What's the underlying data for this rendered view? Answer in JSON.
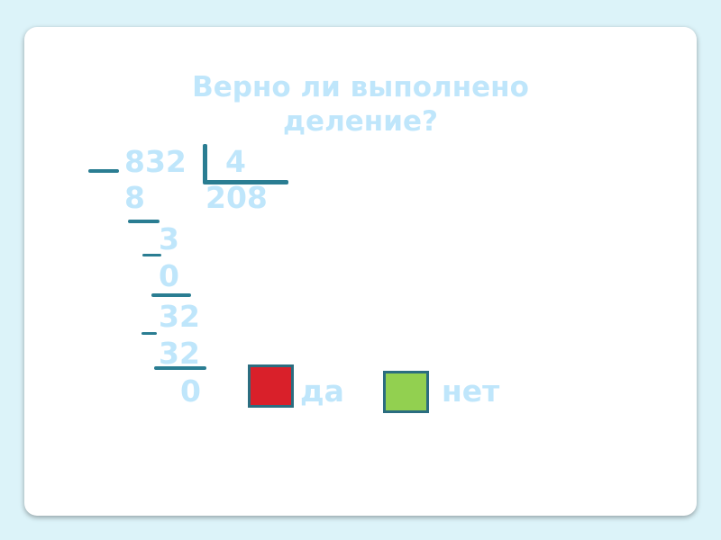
{
  "title": {
    "line1": "Верно ли выполнено",
    "line2": "деление?"
  },
  "division": {
    "dividend": "832",
    "divisor": "4",
    "quotient": "208",
    "steps": [
      "8",
      "3",
      "0",
      "32",
      "32",
      "0"
    ]
  },
  "answers": {
    "yes_label": "да",
    "no_label": "нет",
    "yes_color": "#d9202a",
    "no_color": "#92d050"
  }
}
